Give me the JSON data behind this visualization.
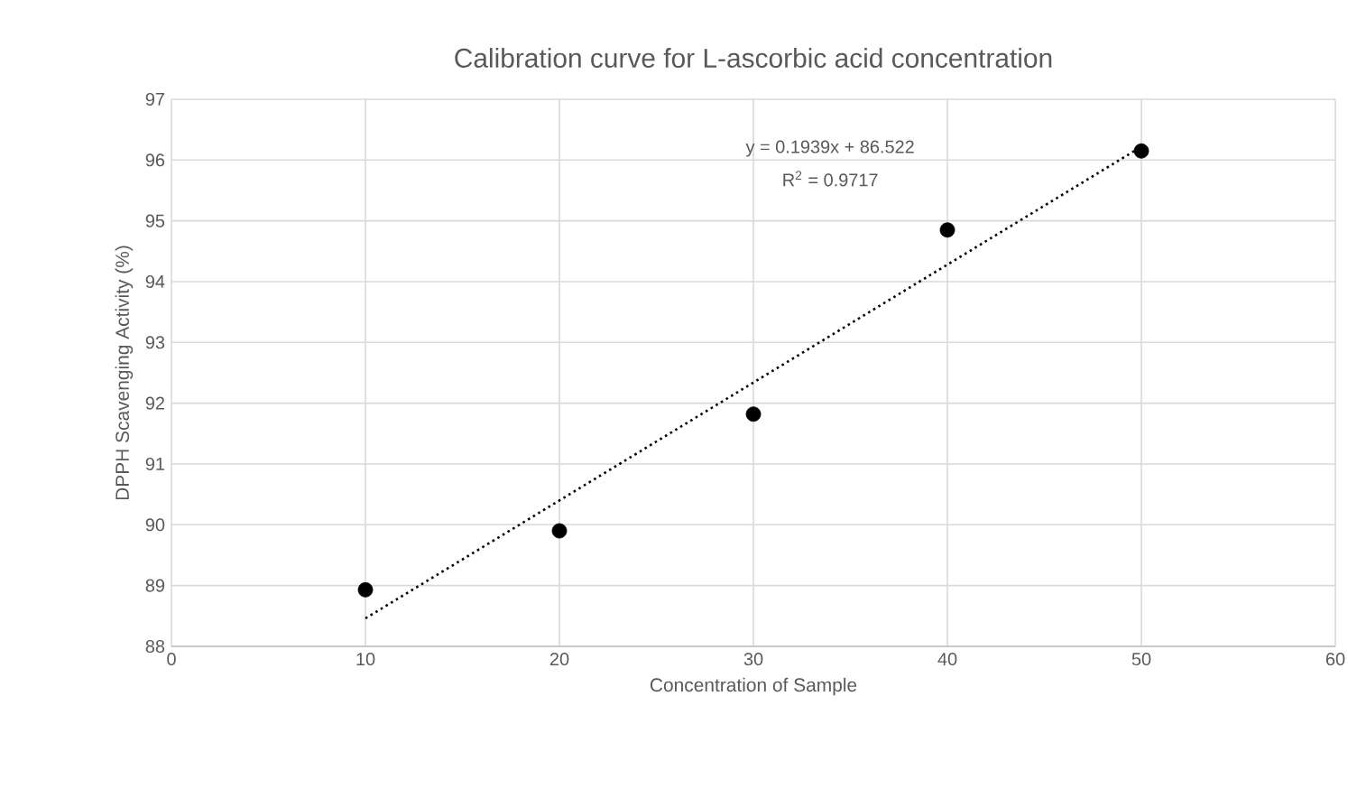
{
  "chart_data": {
    "type": "scatter",
    "title": "Calibration curve for L-ascorbic acid concentration",
    "xlabel": "Concentration of Sample",
    "ylabel": "DPPH Scavenging Activity (%)",
    "xlim": [
      0,
      60
    ],
    "xticks": [
      0,
      10,
      20,
      30,
      40,
      50,
      60
    ],
    "ylim": [
      88,
      97
    ],
    "yticks": [
      88,
      89,
      90,
      91,
      92,
      93,
      94,
      95,
      96,
      97
    ],
    "grid": true,
    "annotations": [
      "y = 0.1939x + 86.522",
      "R$^{2}$ = 0.9717"
    ],
    "series": [
      {
        "color": "#000000",
        "marker": "circle",
        "x": [
          10,
          20,
          30,
          40,
          50
        ],
        "values": [
          88.93,
          89.9,
          91.82,
          94.85,
          96.15
        ]
      },
      {
        "type": "line",
        "color": "#000000",
        "line_style": "dotted",
        "marker": "none",
        "x": [
          10,
          50
        ],
        "values": [
          88.46,
          96.22
        ]
      }
    ]
  }
}
